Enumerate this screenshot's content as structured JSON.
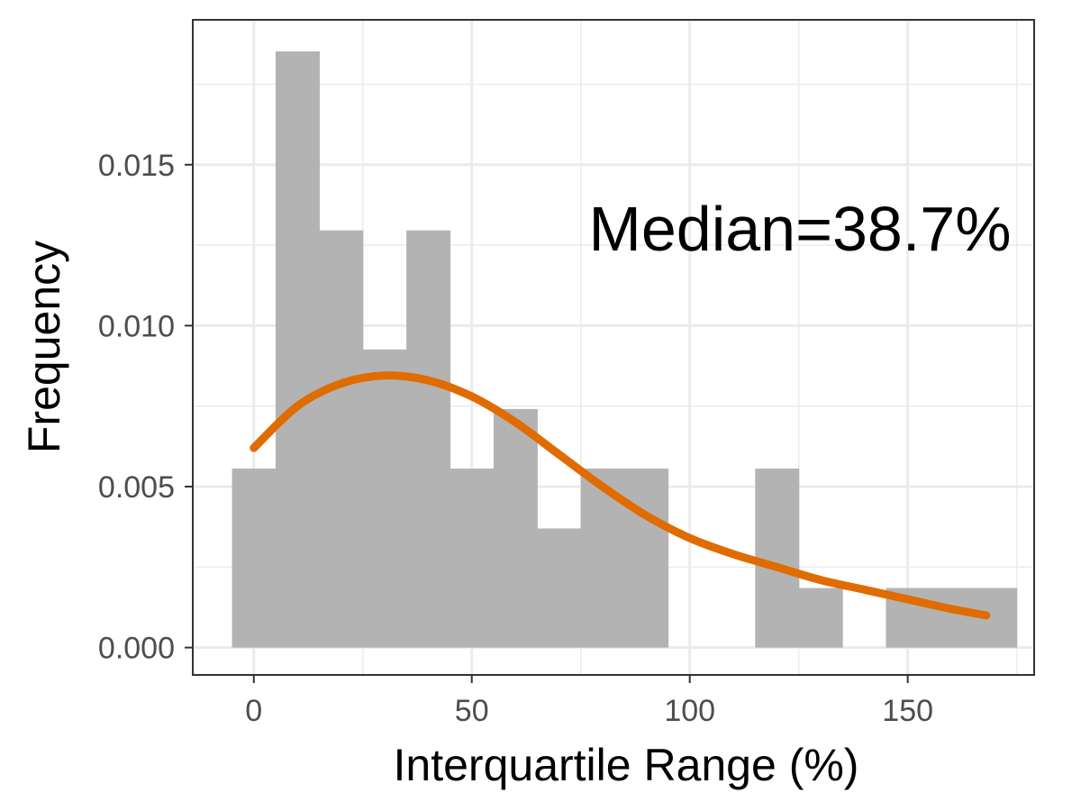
{
  "chart_data": {
    "type": "bar",
    "subtype": "histogram-with-density",
    "title": "",
    "xlabel": "Interquartile Range (%)",
    "ylabel": "Frequency",
    "xlim": [
      -14,
      179
    ],
    "ylim": [
      -0.00085,
      0.0195
    ],
    "x_ticks": [
      0,
      50,
      100,
      150
    ],
    "x_tick_labels": [
      "0",
      "50",
      "100",
      "150"
    ],
    "y_ticks": [
      0.0,
      0.005,
      0.01,
      0.015
    ],
    "y_tick_labels": [
      "0.000",
      "0.005",
      "0.010",
      "0.015"
    ],
    "bin_width": 10,
    "bins": [
      {
        "x0": -5,
        "x1": 5,
        "value": 0.00556
      },
      {
        "x0": 5,
        "x1": 15,
        "value": 0.01852
      },
      {
        "x0": 15,
        "x1": 25,
        "value": 0.01296
      },
      {
        "x0": 25,
        "x1": 35,
        "value": 0.00926
      },
      {
        "x0": 35,
        "x1": 45,
        "value": 0.01296
      },
      {
        "x0": 45,
        "x1": 55,
        "value": 0.00556
      },
      {
        "x0": 55,
        "x1": 65,
        "value": 0.00741
      },
      {
        "x0": 65,
        "x1": 75,
        "value": 0.0037
      },
      {
        "x0": 75,
        "x1": 85,
        "value": 0.00556
      },
      {
        "x0": 85,
        "x1": 95,
        "value": 0.00556
      },
      {
        "x0": 95,
        "x1": 105,
        "value": 0
      },
      {
        "x0": 105,
        "x1": 115,
        "value": 0
      },
      {
        "x0": 115,
        "x1": 125,
        "value": 0.00556
      },
      {
        "x0": 125,
        "x1": 135,
        "value": 0.00185
      },
      {
        "x0": 135,
        "x1": 145,
        "value": 0
      },
      {
        "x0": 145,
        "x1": 155,
        "value": 0.00185
      },
      {
        "x0": 155,
        "x1": 165,
        "value": 0.00185
      },
      {
        "x0": 165,
        "x1": 175,
        "value": 0.00185
      }
    ],
    "density_curve": {
      "x": [
        0,
        10,
        20,
        30,
        40,
        50,
        60,
        70,
        80,
        90,
        100,
        110,
        120,
        130,
        140,
        150,
        160,
        168
      ],
      "y": [
        0.0062,
        0.0075,
        0.0082,
        0.00845,
        0.0083,
        0.0078,
        0.007,
        0.006,
        0.005,
        0.0041,
        0.0034,
        0.0029,
        0.0025,
        0.0021,
        0.0018,
        0.0015,
        0.0012,
        0.001
      ]
    },
    "annotation": "Median=38.7%",
    "grid": true,
    "colors": {
      "bars": "#b3b3b3",
      "curve": "#e06c00",
      "grid": "#ebebeb",
      "panel_border": "#333333",
      "tick_label": "#4d4d4d"
    }
  }
}
